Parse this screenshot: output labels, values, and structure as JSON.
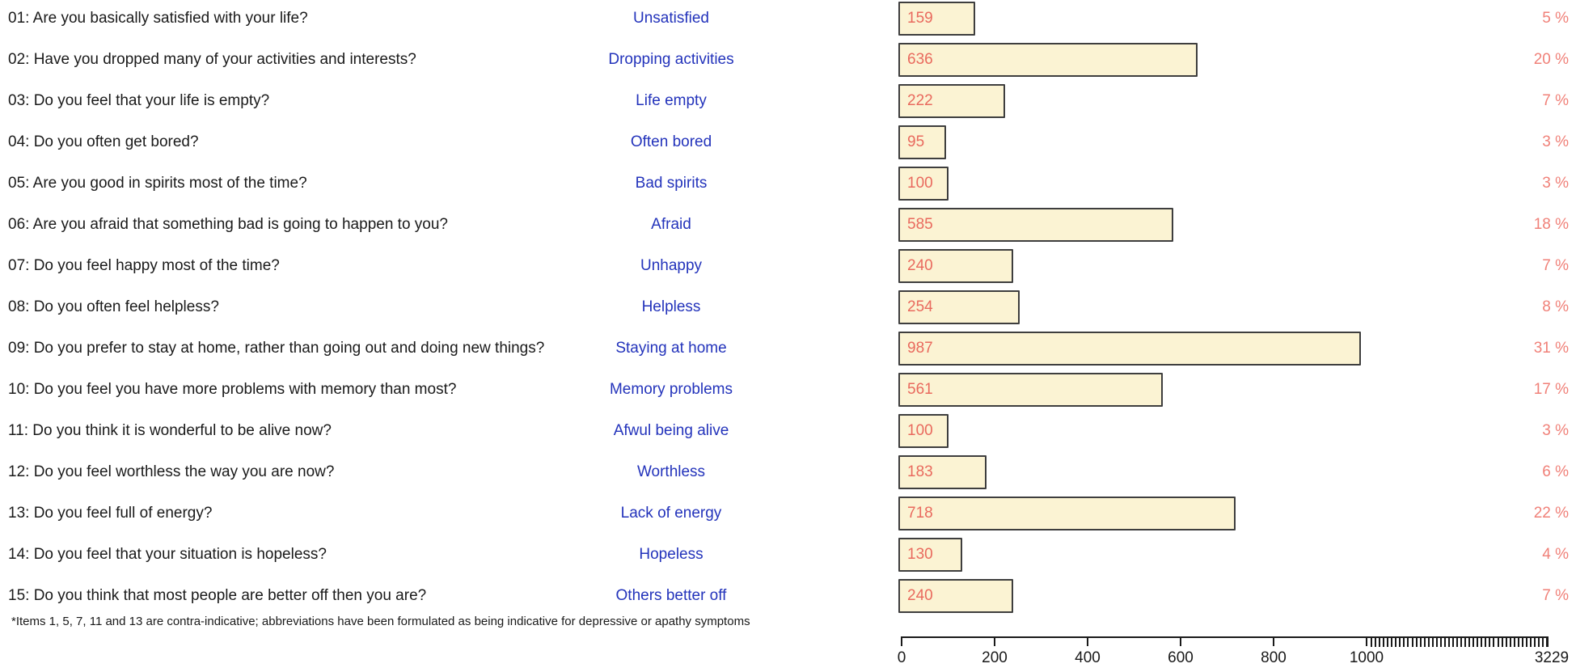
{
  "chart_data": {
    "type": "bar",
    "title": "",
    "orientation": "horizontal",
    "items": [
      {
        "question": "01: Are you basically satisfied with your life?",
        "label": "Unsatisfied",
        "count": 159,
        "percent": "5 %"
      },
      {
        "question": "02: Have you dropped many of your activities and interests?",
        "label": "Dropping activities",
        "count": 636,
        "percent": "20 %"
      },
      {
        "question": "03: Do you feel that your life is empty?",
        "label": "Life empty",
        "count": 222,
        "percent": "7 %"
      },
      {
        "question": "04: Do you often get bored?",
        "label": "Often bored",
        "count": 95,
        "percent": "3 %"
      },
      {
        "question": "05: Are you good in spirits most of the time?",
        "label": "Bad spirits",
        "count": 100,
        "percent": "3 %"
      },
      {
        "question": "06: Are you afraid that something bad is going to happen to you?",
        "label": "Afraid",
        "count": 585,
        "percent": "18 %"
      },
      {
        "question": "07: Do you feel happy most of the time?",
        "label": "Unhappy",
        "count": 240,
        "percent": "7 %"
      },
      {
        "question": "08: Do you often feel helpless?",
        "label": "Helpless",
        "count": 254,
        "percent": "8 %"
      },
      {
        "question": "09: Do you prefer to stay at home, rather than going out and doing new things?",
        "label": "Staying at home",
        "count": 987,
        "percent": "31 %"
      },
      {
        "question": "10: Do you feel you have more problems with memory than most?",
        "label": "Memory problems",
        "count": 561,
        "percent": "17 %"
      },
      {
        "question": "11: Do you think it is wonderful to be alive now?",
        "label": "Afwul being alive",
        "count": 100,
        "percent": "3 %"
      },
      {
        "question": "12: Do you feel worthless the way you are now?",
        "label": "Worthless",
        "count": 183,
        "percent": "6 %"
      },
      {
        "question": "13: Do you feel full of energy?",
        "label": "Lack of energy",
        "count": 718,
        "percent": "22 %"
      },
      {
        "question": "14: Do you feel that your situation is hopeless?",
        "label": "Hopeless",
        "count": 130,
        "percent": "4 %"
      },
      {
        "question": "15: Do you think that most people are better off then you are?",
        "label": "Others better off",
        "count": 240,
        "percent": "7 %"
      }
    ],
    "axis": {
      "tick_values": [
        0,
        200,
        400,
        600,
        800,
        1000
      ],
      "tick_labels": [
        "0",
        "200",
        "400",
        "600",
        "800",
        "1000"
      ],
      "linear_max": 1000,
      "end_value": 3229,
      "end_label": "3229",
      "dense_ticks": {
        "start": 1050,
        "step": 50,
        "end": 3200
      },
      "grid": false
    },
    "footnote": "*Items 1, 5, 7, 11 and 13 are contra-indicative; abbreviations have been formulated as being indicative for depressive or apathy symptoms",
    "colors": {
      "bar_fill": "#FBF3D3",
      "bar_border": "#3E3E3E",
      "value_text": "#E96A5E",
      "percent_text": "#F08078",
      "abbr_text": "#2333BB",
      "question_text": "#1A1A1A",
      "axis": "#1A1A1A"
    }
  }
}
